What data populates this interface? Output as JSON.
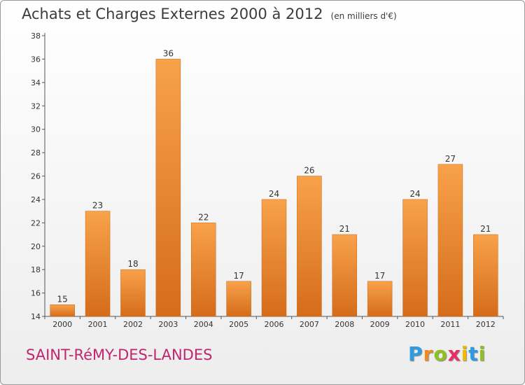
{
  "chart_data": {
    "type": "bar",
    "title": "Achats et Charges Externes 2000 à 2012",
    "subtitle": "(en milliers d'€)",
    "categories": [
      "2000",
      "2001",
      "2002",
      "2003",
      "2004",
      "2005",
      "2006",
      "2007",
      "2008",
      "2009",
      "2010",
      "2011",
      "2012"
    ],
    "values": [
      15,
      23,
      18,
      36,
      22,
      17,
      24,
      26,
      21,
      17,
      24,
      27,
      21
    ],
    "ylim": [
      14,
      38
    ],
    "yticks": [
      14,
      16,
      18,
      20,
      22,
      24,
      26,
      28,
      30,
      32,
      34,
      36,
      38
    ],
    "grid": false,
    "bar_color": "#f2973a",
    "bar_color_dark": "#d56c1a"
  },
  "footer": {
    "commune": "SAINT-RéMY-DES-LANDES",
    "logo_letters": [
      {
        "char": "P",
        "color": "#2d9be0"
      },
      {
        "char": "r",
        "color": "#f08a1c"
      },
      {
        "char": "o",
        "color": "#8dc21f"
      },
      {
        "char": "x",
        "color": "#e62e67"
      },
      {
        "char": "i",
        "color": "#f5b800"
      },
      {
        "char": "t",
        "color": "#2d9be0"
      },
      {
        "char": "i",
        "color": "#8dc21f"
      }
    ]
  }
}
